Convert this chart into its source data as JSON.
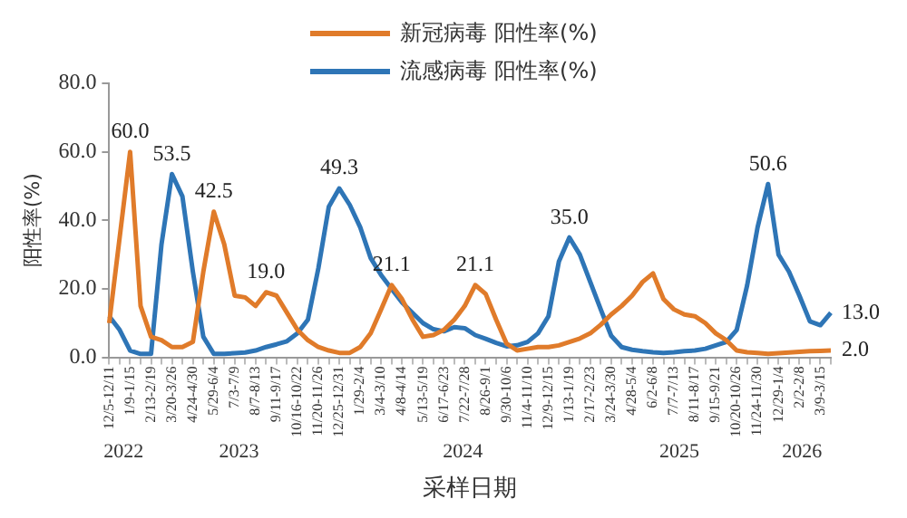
{
  "chart_data": {
    "type": "line",
    "xlabel": "采样日期",
    "ylabel": "阳性率(%)",
    "categories": [
      "12/5-12/11",
      null,
      "1/9-1/15",
      null,
      "2/13-2/19",
      null,
      "3/20-3/26",
      null,
      "4/24-4/30",
      null,
      "5/29-6/4",
      null,
      "7/3-7/9",
      null,
      "8/7-8/13",
      null,
      "9/11-9/17",
      null,
      "10/16-10/22",
      null,
      "11/20-11/26",
      null,
      "12/25-12/31",
      null,
      "1/29-2/4",
      null,
      "3/4-3/10",
      null,
      "4/8-4/14",
      null,
      "5/13-5/19",
      null,
      "6/17-6/23",
      null,
      "7/22-7/28",
      null,
      "8/26-9/1",
      null,
      "9/30-10/6",
      null,
      "11/4-11/10",
      null,
      "12/9-12/15",
      null,
      "1/13-1/19",
      null,
      "2/17-2/23",
      null,
      "3/24-3/30",
      null,
      "4/28-5/4",
      null,
      "6/2-6/8",
      null,
      "7/7-7/13",
      null,
      "8/11-8/17",
      null,
      "9/15-9/21",
      null,
      "10/20-10/26",
      null,
      "11/24-11/30",
      null,
      "12/29-1/4",
      null,
      "2/2-2/8",
      null,
      "3/9-3/15",
      null
    ],
    "annotations": [
      "2022",
      "2023",
      "2024",
      "2025",
      "2026"
    ],
    "ylim": [
      0,
      80
    ],
    "yticks": [
      {
        "value": 0,
        "label": "0.0"
      },
      {
        "value": 20,
        "label": "20.0"
      },
      {
        "value": 40,
        "label": "40.0"
      },
      {
        "value": 60,
        "label": "60.0"
      },
      {
        "value": 80,
        "label": "80.0"
      }
    ],
    "grid": false,
    "legend": "top",
    "marker": "none",
    "line_style": "solid",
    "series": [
      {
        "name": "新冠病毒 阳性率(%)",
        "color": "#e07b2a",
        "values": [
          10,
          35,
          60.0,
          15,
          6,
          5,
          3,
          3,
          4.5,
          25,
          42.5,
          33,
          18,
          17.5,
          15,
          19.0,
          18,
          13,
          8,
          5,
          3,
          2,
          1.3,
          1.3,
          3,
          7,
          14,
          21.1,
          17,
          11,
          6,
          6.5,
          8,
          11,
          15,
          21.1,
          18.5,
          11,
          4,
          2,
          2.5,
          3,
          3,
          3.5,
          4.5,
          5.5,
          7,
          9.5,
          12.5,
          15,
          18,
          22,
          24.5,
          17,
          14,
          12.5,
          12,
          10,
          7,
          5,
          2,
          1.5,
          1.3,
          1,
          1.2,
          1.4,
          1.6,
          1.8,
          1.9,
          2.0
        ],
        "value_labels": [
          null,
          null,
          "60.0",
          null,
          null,
          null,
          null,
          null,
          null,
          null,
          "42.5",
          null,
          null,
          null,
          null,
          "19.0",
          null,
          null,
          null,
          null,
          null,
          null,
          null,
          null,
          null,
          null,
          null,
          "21.1",
          null,
          null,
          null,
          null,
          null,
          null,
          null,
          "21.1",
          null,
          null,
          null,
          null,
          null,
          null,
          null,
          null,
          null,
          null,
          null,
          null,
          null,
          null,
          null,
          null,
          null,
          null,
          null,
          null,
          null,
          null,
          null,
          null,
          null,
          null,
          null,
          null,
          null,
          null,
          null,
          null,
          null,
          "2.0"
        ]
      },
      {
        "name": "流感病毒 阳性率(%)",
        "color": "#2e75b6",
        "values": [
          12,
          8,
          2,
          1,
          1,
          33,
          53.5,
          47,
          25,
          6,
          1,
          1,
          1.2,
          1.4,
          2,
          3,
          3.8,
          4.7,
          7,
          11,
          26,
          44,
          49.3,
          44.5,
          38,
          29,
          24,
          20,
          16,
          13,
          10,
          8.2,
          7.6,
          8.8,
          8.5,
          6.5,
          5.4,
          4.2,
          3.2,
          3.5,
          4.5,
          7,
          12,
          28,
          35.0,
          30,
          22,
          14,
          6.3,
          3,
          2.2,
          1.8,
          1.5,
          1.3,
          1.5,
          1.8,
          2,
          2.5,
          3.5,
          4.5,
          8,
          21,
          38,
          50.6,
          30,
          25,
          18,
          10.5,
          9.4,
          13.0
        ],
        "value_labels": [
          null,
          null,
          null,
          null,
          null,
          null,
          "53.5",
          null,
          null,
          null,
          null,
          null,
          null,
          null,
          null,
          null,
          null,
          null,
          null,
          null,
          null,
          null,
          "49.3",
          null,
          null,
          null,
          null,
          null,
          null,
          null,
          null,
          null,
          null,
          null,
          null,
          null,
          null,
          null,
          null,
          null,
          null,
          null,
          null,
          null,
          "35.0",
          null,
          null,
          null,
          null,
          null,
          null,
          null,
          null,
          null,
          null,
          null,
          null,
          null,
          null,
          null,
          null,
          null,
          null,
          "50.6",
          null,
          null,
          null,
          null,
          null,
          "13.0"
        ]
      }
    ]
  }
}
